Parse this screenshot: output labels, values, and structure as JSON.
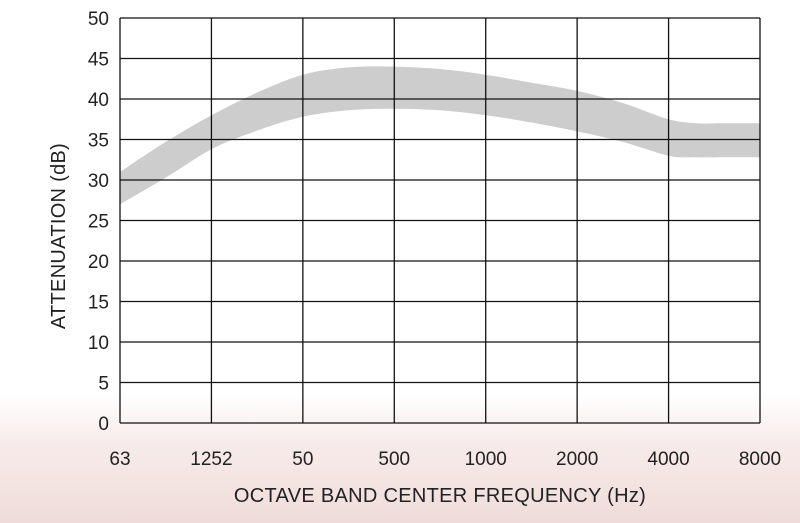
{
  "chart_data": {
    "type": "area",
    "title": "",
    "xlabel": "OCTAVE BAND CENTER FREQUENCY (Hz)",
    "ylabel": "ATTENUATION (dB)",
    "categories": [
      "63",
      "1252",
      "50",
      "500",
      "1000",
      "2000",
      "4000",
      "8000"
    ],
    "ylim": [
      0,
      50
    ],
    "yticks": [
      0,
      5,
      10,
      15,
      20,
      25,
      30,
      35,
      40,
      45,
      50
    ],
    "grid": true,
    "legend": "none",
    "band": {
      "x": [
        0,
        0.5,
        1,
        1.5,
        2,
        2.5,
        3,
        3.5,
        4,
        4.5,
        5,
        5.5,
        6,
        6.3,
        6.6,
        7
      ],
      "upper": [
        31,
        34.7,
        38,
        40.8,
        43,
        43.9,
        44,
        43.7,
        43,
        42,
        41,
        39.5,
        37.5,
        37,
        37,
        37
      ],
      "lower": [
        27,
        30.3,
        33.8,
        36.1,
        37.8,
        38.6,
        38.8,
        38.6,
        38,
        37.1,
        36,
        34.7,
        33,
        32.8,
        32.8,
        32.8
      ]
    },
    "colors": {
      "band": "#cdcdcd",
      "grid": "#111111",
      "background_bottom": "#efdcd9"
    }
  }
}
